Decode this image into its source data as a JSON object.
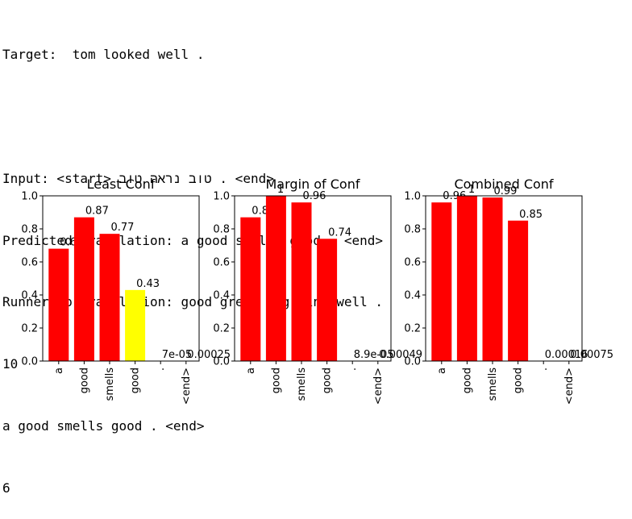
{
  "console": {
    "target_line": "Target:  tom looked well .",
    "input_line": "Input: <start> טוב נראה טוב . <end>",
    "predicted_line": "Predicted translation: a good smells good . <end>",
    "runner_up_line": "Runner-up translation: good great dog fine well .",
    "count_line": "10",
    "sentence_line": "a good smells good . <end>",
    "index_line": "6"
  },
  "colors": {
    "low_conf": "#ffff00",
    "high_conf": "#ff0000"
  },
  "chart_data": [
    {
      "type": "bar",
      "title": "Least Conf",
      "categories": [
        "a",
        "good",
        "smells",
        "good",
        ".",
        "<end>"
      ],
      "values": [
        0.68,
        0.87,
        0.77,
        0.43,
        7e-05,
        0.00025
      ],
      "labels": [
        "0.68",
        "0.87",
        "0.77",
        "0.43",
        "7e-05",
        "0.00025"
      ],
      "colors": [
        "#ff0000",
        "#ff0000",
        "#ff0000",
        "#ffff00",
        "#ff0000",
        "#ff0000"
      ],
      "ylim": [
        0,
        1.0
      ],
      "yticks": [
        "0.0",
        "0.2",
        "0.4",
        "0.6",
        "0.8",
        "1.0"
      ]
    },
    {
      "type": "bar",
      "title": "Margin of Conf",
      "categories": [
        "a",
        "good",
        "smells",
        "good",
        ".",
        "<end>"
      ],
      "values": [
        0.87,
        1.0,
        0.96,
        0.74,
        8.9e-05,
        0.00049
      ],
      "labels": [
        "0.87",
        "1",
        "0.96",
        "0.74",
        "8.9e-05",
        "0.00049"
      ],
      "colors": [
        "#ff0000",
        "#ff0000",
        "#ff0000",
        "#ff0000",
        "#ff0000",
        "#ff0000"
      ],
      "ylim": [
        0,
        1.0
      ],
      "yticks": [
        "0.0",
        "0.2",
        "0.4",
        "0.6",
        "0.8",
        "1.0"
      ]
    },
    {
      "type": "bar",
      "title": "Combined Conf",
      "categories": [
        "a",
        "good",
        "smells",
        "good",
        ".",
        "<end>"
      ],
      "values": [
        0.96,
        1.0,
        0.99,
        0.85,
        0.00016,
        0.00075
      ],
      "labels": [
        "0.96",
        "1",
        "0.99",
        "0.85",
        "0.00016",
        "0.00075"
      ],
      "colors": [
        "#ff0000",
        "#ff0000",
        "#ff0000",
        "#ff0000",
        "#ff0000",
        "#ff0000"
      ],
      "ylim": [
        0,
        1.0
      ],
      "yticks": [
        "0.0",
        "0.2",
        "0.4",
        "0.6",
        "0.8",
        "1.0"
      ]
    }
  ]
}
